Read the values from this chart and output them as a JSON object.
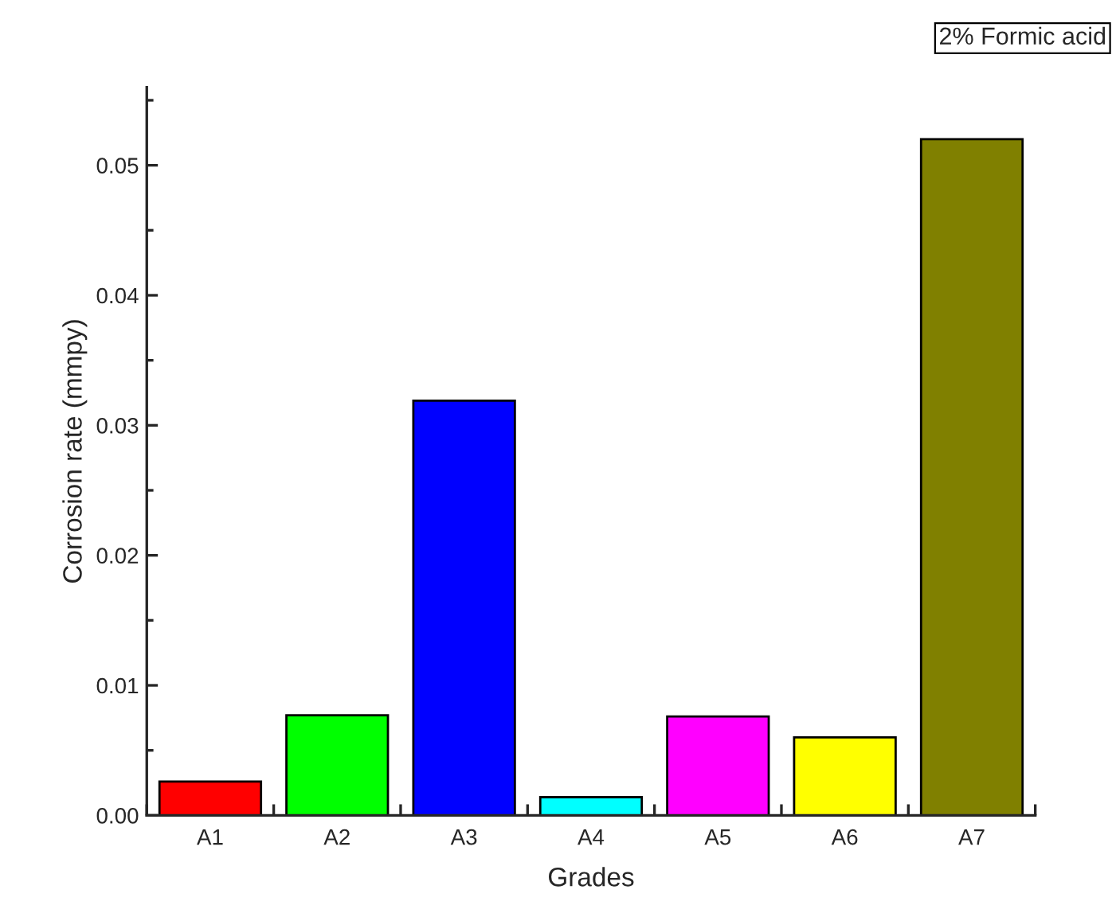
{
  "chart_data": {
    "type": "bar",
    "xlabel": "Grades",
    "ylabel": "Corrosion rate (mmpy)",
    "categories": [
      "A1",
      "A2",
      "A3",
      "A4",
      "A5",
      "A6",
      "A7"
    ],
    "values": [
      0.0026,
      0.0077,
      0.0319,
      0.0014,
      0.0076,
      0.006,
      0.052
    ],
    "colors": [
      "#ff0000",
      "#00ff00",
      "#0000ff",
      "#00ffff",
      "#ff00ff",
      "#ffff00",
      "#808000"
    ],
    "ylim": [
      0,
      0.056
    ],
    "yticks": [
      {
        "value": 0,
        "label": "0.00"
      },
      {
        "value": 0.005,
        "label": null
      },
      0.01,
      {
        "value": 0.015,
        "label": null
      },
      0.02,
      {
        "value": 0.025,
        "label": null
      },
      0.03,
      {
        "value": 0.035,
        "label": null
      },
      0.04,
      {
        "value": 0.045,
        "label": null
      },
      0.05,
      {
        "value": 0.055,
        "label": null
      }
    ],
    "annotations": [
      "2% Formic acid"
    ],
    "grid": false,
    "legend": false
  }
}
